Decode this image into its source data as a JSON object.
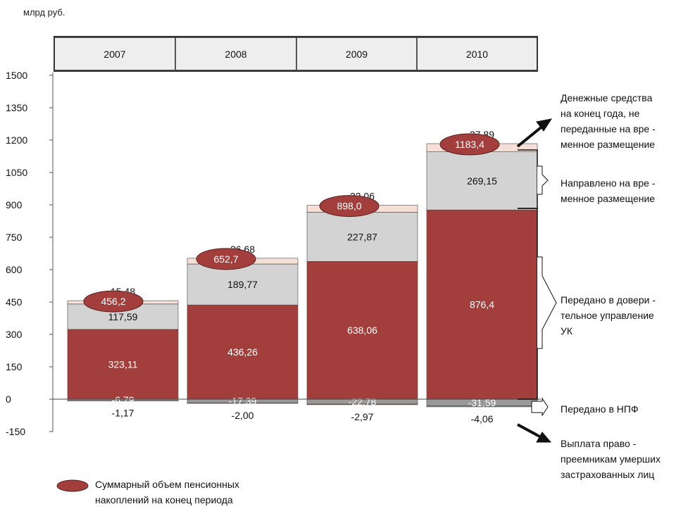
{
  "unit_label": "млрд руб.",
  "chart_data": {
    "type": "bar",
    "stacked": true,
    "title": "",
    "xlabel": "",
    "ylabel": "",
    "unit": "млрд руб.",
    "ylim": [
      -150,
      1500
    ],
    "yticks": [
      -150,
      0,
      150,
      300,
      450,
      600,
      750,
      900,
      1050,
      1200,
      1350,
      1500
    ],
    "grid": false,
    "categories": [
      "2007",
      "2008",
      "2009",
      "2010"
    ],
    "series": [
      {
        "name": "Выплата правопреемникам умерших застрахованных лиц",
        "values": [
          -1.17,
          -2.0,
          -2.97,
          -4.06
        ],
        "labels": [
          "-1,17",
          "-2,00",
          "-2,97",
          "-4,06"
        ],
        "color": "#cc8a75"
      },
      {
        "name": "Передано в НПФ",
        "values": [
          -6.79,
          -17.39,
          -22.78,
          -31.59
        ],
        "labels": [
          "-6,79",
          "-17,39",
          "-22,78",
          "-31,59"
        ],
        "color": "#999999"
      },
      {
        "name": "Передано в доверительное управление УК",
        "values": [
          323.11,
          436.26,
          638.06,
          876.4
        ],
        "labels": [
          "323,11",
          "436,26",
          "638,06",
          "876,4"
        ],
        "color": "#a23f3d"
      },
      {
        "name": "Направлено на временное размещение",
        "values": [
          117.59,
          189.77,
          227.87,
          269.15
        ],
        "labels": [
          "117,59",
          "189,77",
          "227,87",
          "269,15"
        ],
        "color": "#d3d3d3"
      },
      {
        "name": "Денежные средства на конец года, не переданные на временное размещение",
        "values": [
          15.48,
          26.68,
          32.06,
          37.89
        ],
        "labels": [
          "15,48",
          "26,68",
          "32,06",
          "37,89"
        ],
        "color": "#f6dfd6"
      }
    ],
    "totals": {
      "values": [
        456.2,
        652.7,
        898.0,
        1183.4
      ],
      "labels": [
        "456,2",
        "652,7",
        "898,0",
        "1183,4"
      ],
      "color": "#a23f3d"
    },
    "legend": {
      "label_lines": [
        "Суммарный объем пенсионных",
        "накоплений на конец периода"
      ],
      "placement": "bottom-left"
    },
    "annotations": {
      "cash": [
        "Денежные средства",
        "на конец года, не",
        "переданные на вре -",
        "менное  размещение"
      ],
      "temp": [
        "Направлено на  вре -",
        "менное  размещение"
      ],
      "trust": [
        "Передано в довери -",
        "тельное управление",
        "УК"
      ],
      "npf": [
        "Передано в НПФ"
      ],
      "payout": [
        "Выплата право -",
        "преемникам умерших",
        "застрахованных лиц"
      ]
    }
  }
}
